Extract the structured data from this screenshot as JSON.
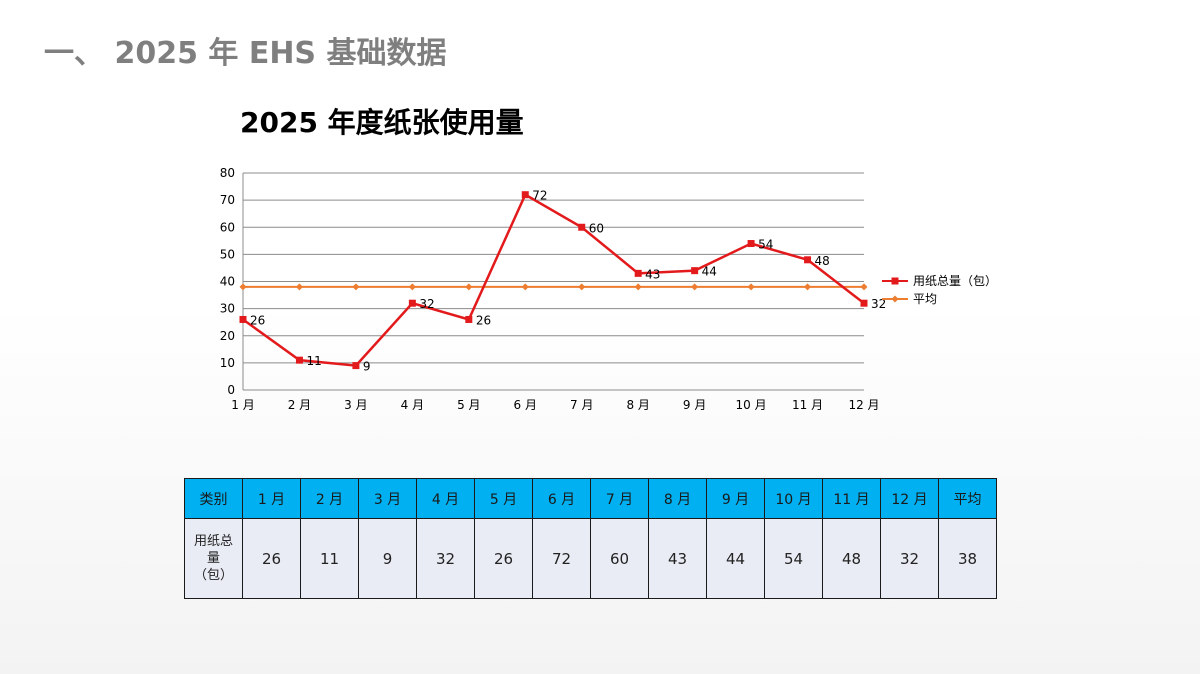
{
  "slide": {
    "heading": "一、 2025 年 EHS 基础数据"
  },
  "chart_data": {
    "type": "line",
    "title": "2025 年度纸张使用量",
    "categories": [
      "1 月",
      "2 月",
      "3 月",
      "4 月",
      "5 月",
      "6 月",
      "7 月",
      "8 月",
      "9 月",
      "10 月",
      "11 月",
      "12 月"
    ],
    "series": [
      {
        "name": "用纸总量（包）",
        "color": "#e31a1c",
        "marker": "square",
        "values": [
          26,
          11,
          9,
          32,
          26,
          72,
          60,
          43,
          44,
          54,
          48,
          32
        ],
        "data_labels": true
      },
      {
        "name": "平均",
        "color": "#ed7d31",
        "marker": "diamond",
        "values": [
          38,
          38,
          38,
          38,
          38,
          38,
          38,
          38,
          38,
          38,
          38,
          38
        ],
        "data_labels": false
      }
    ],
    "ylim": [
      0,
      80
    ],
    "yticks": [
      "0",
      "10",
      "20",
      "30",
      "40",
      "50",
      "60",
      "70",
      "80"
    ],
    "grid": true,
    "legend": "right"
  },
  "table": {
    "headers": [
      "类别",
      "1 月",
      "2 月",
      "3 月",
      "4 月",
      "5 月",
      "6 月",
      "7 月",
      "8 月",
      "9 月",
      "10 月",
      "11 月",
      "12 月",
      "平均"
    ],
    "row_label": [
      "用纸总",
      "量",
      "（包）"
    ],
    "values": [
      "26",
      "11",
      "9",
      "32",
      "26",
      "72",
      "60",
      "43",
      "44",
      "54",
      "48",
      "32",
      "38"
    ]
  }
}
